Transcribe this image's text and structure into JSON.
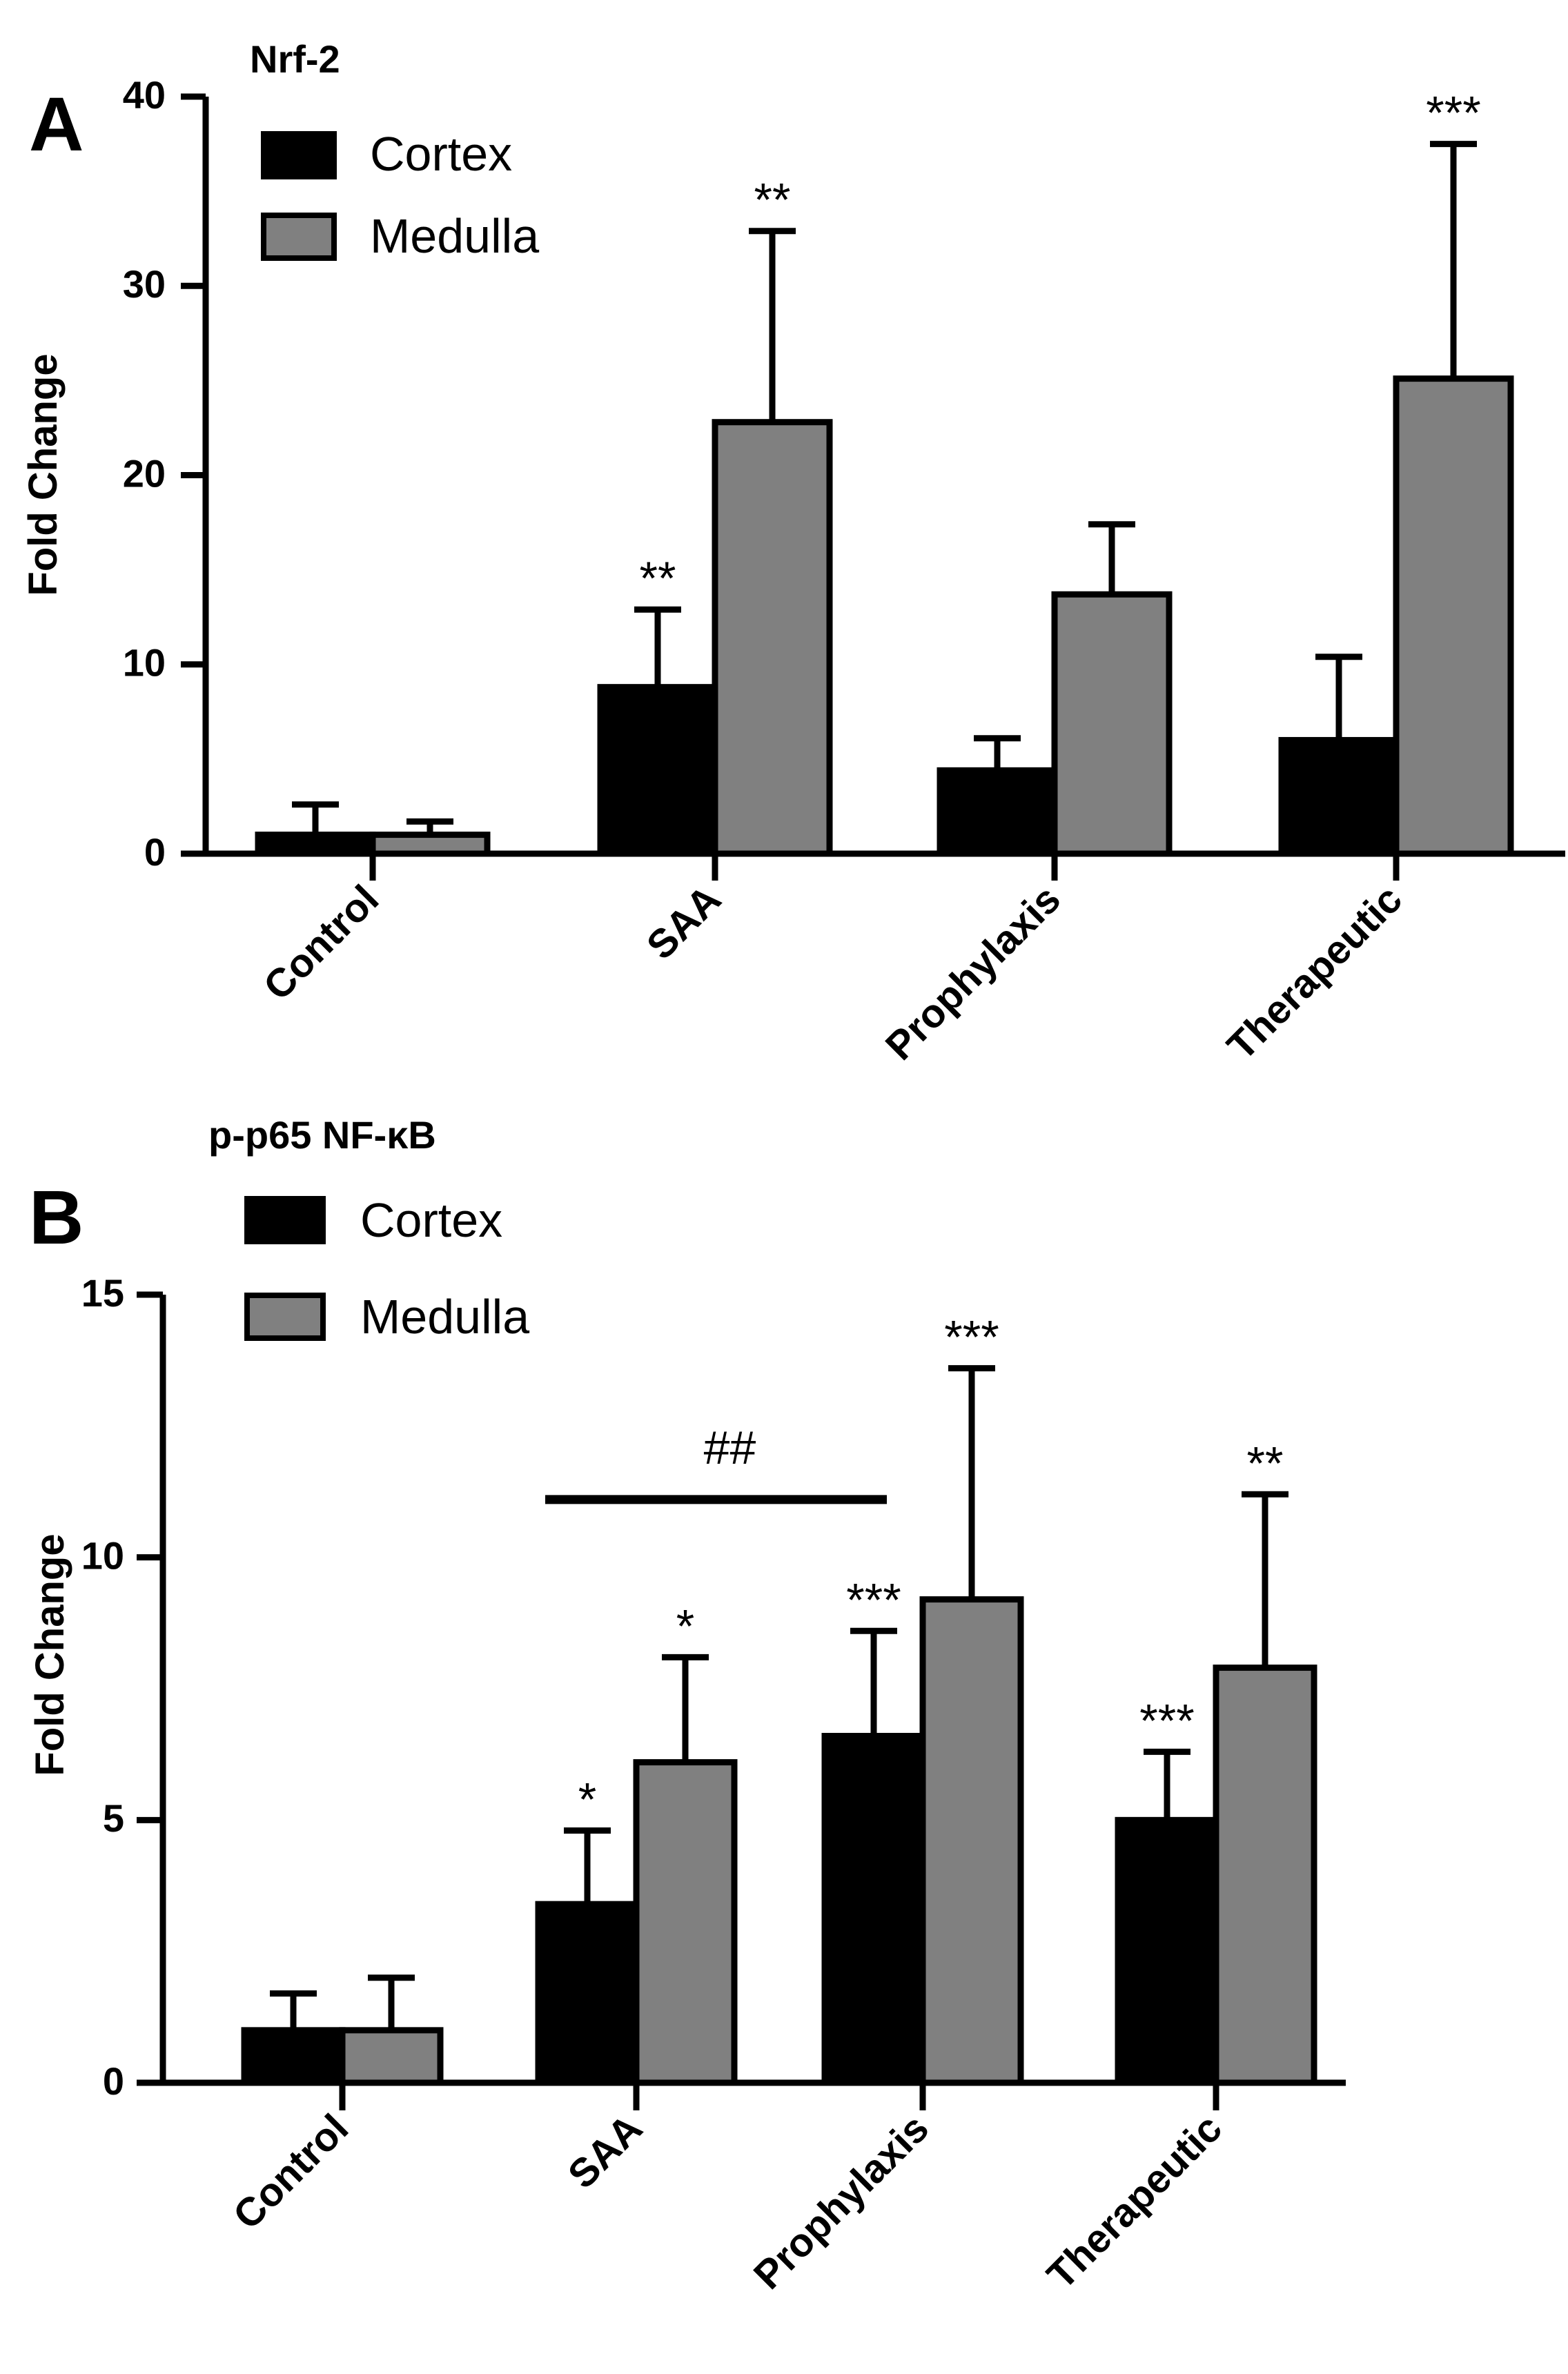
{
  "chart_data": [
    {
      "type": "bar",
      "panel_label": "A",
      "title": "Nrf-2",
      "ylabel": "Fold Change",
      "xlabel": "",
      "ylim": [
        0,
        40
      ],
      "yticks": [
        "0",
        "10",
        "20",
        "30",
        "40"
      ],
      "categories": [
        "Control",
        "SAA",
        "Prophylaxis",
        "Therapeutic"
      ],
      "series": [
        {
          "name": "Cortex",
          "color": "#000000",
          "values": [
            1.0,
            8.8,
            4.4,
            6.0
          ],
          "errors": [
            1.6,
            4.1,
            1.7,
            4.4
          ],
          "annotations": [
            "",
            "**",
            "",
            ""
          ]
        },
        {
          "name": "Medulla",
          "color": "#808080",
          "values": [
            1.0,
            22.8,
            13.7,
            25.1
          ],
          "errors": [
            0.7,
            10.1,
            3.7,
            12.4
          ],
          "annotations": [
            "",
            "**",
            "",
            "***"
          ]
        }
      ],
      "legend": [
        "Cortex",
        "Medulla"
      ],
      "comparison": null
    },
    {
      "type": "bar",
      "panel_label": "B",
      "title": "p-p65 NF-κB",
      "ylabel": "Fold Change",
      "xlabel": "",
      "ylim": [
        0,
        15
      ],
      "yticks": [
        "0",
        "5",
        "10",
        "15"
      ],
      "categories": [
        "Control",
        "SAA",
        "Prophylaxis",
        "Therapeutic"
      ],
      "series": [
        {
          "name": "Cortex",
          "color": "#000000",
          "values": [
            1.0,
            3.4,
            6.6,
            5.0
          ],
          "errors": [
            0.7,
            1.4,
            2.0,
            1.3
          ],
          "annotations": [
            "",
            "*",
            "***",
            "***"
          ]
        },
        {
          "name": "Medulla",
          "color": "#808080",
          "values": [
            1.0,
            6.1,
            9.2,
            7.9
          ],
          "errors": [
            1.0,
            2.0,
            4.4,
            3.3
          ],
          "annotations": [
            "",
            "*",
            "***",
            "**"
          ]
        }
      ],
      "legend": [
        "Cortex",
        "Medulla"
      ],
      "comparison": {
        "label": "##",
        "from_category": 1,
        "to_category": 2,
        "y": 11.1
      }
    }
  ]
}
